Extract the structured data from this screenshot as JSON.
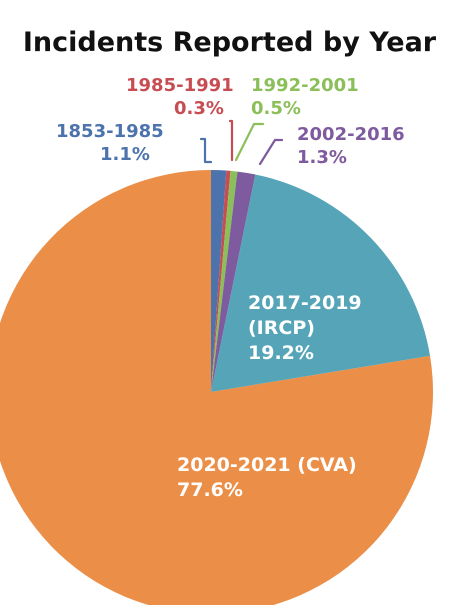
{
  "chart_data": {
    "type": "pie",
    "title": "Incidents Reported by Year",
    "slices": [
      {
        "label": "1853-1985",
        "value": 1.1,
        "value_label": "1.1%",
        "color": "#4d73ad"
      },
      {
        "label": "1985-1991",
        "value": 0.3,
        "value_label": "0.3%",
        "color": "#c74d53"
      },
      {
        "label": "1992-2001",
        "value": 0.5,
        "value_label": "0.5%",
        "color": "#8bbf59"
      },
      {
        "label": "2002-2016",
        "value": 1.3,
        "value_label": "1.3%",
        "color": "#7e5a9e"
      },
      {
        "label_lines": [
          "2017-2019",
          "(IRCP)"
        ],
        "value": 19.2,
        "value_label": "19.2%",
        "color": "#55a4b7"
      },
      {
        "label": "2020-2021 (CVA)",
        "value": 77.6,
        "value_label": "77.6%",
        "color": "#eb8f48"
      }
    ]
  }
}
